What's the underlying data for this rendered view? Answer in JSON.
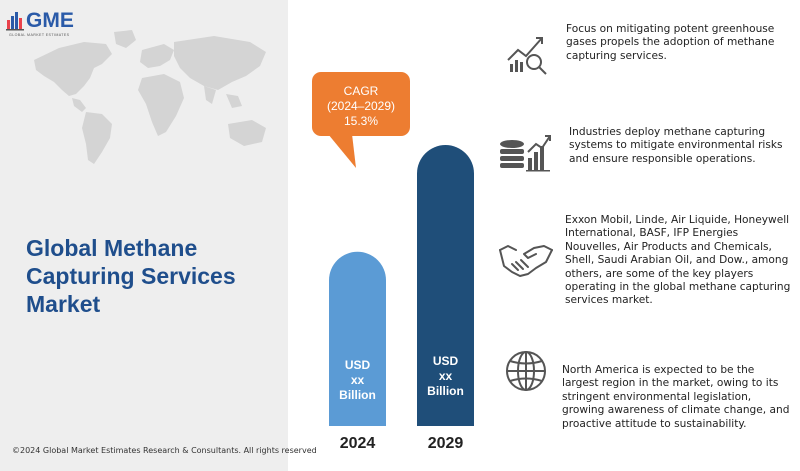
{
  "brand": {
    "logo_text": "GME",
    "logo_subtitle": "GLOBAL MARKET ESTIMATES"
  },
  "title": {
    "line1": "Global Methane",
    "line2": "Capturing Services",
    "line3": "Market"
  },
  "copyright": "©2024 Global Market Estimates Research & Consultants. All rights reserved",
  "callout": {
    "label": "CAGR",
    "period": "(2024–2029)",
    "value": "15.3%"
  },
  "chart_data": {
    "type": "bar",
    "categories": [
      "2024",
      "2029"
    ],
    "value_labels": [
      [
        "USD",
        "xx",
        "Billion"
      ],
      [
        "USD",
        "xx",
        "Billion"
      ]
    ],
    "relative_heights": [
      0.62,
      1.0
    ],
    "colors": [
      "#5b9bd5",
      "#1f4e79"
    ],
    "annotation": "CAGR (2024–2029) 15.3%"
  },
  "insights": [
    {
      "icon": "growth-chart-magnifier-icon",
      "text": "Focus on mitigating potent greenhouse gases propels the adoption of methane capturing services."
    },
    {
      "icon": "database-bar-chart-icon",
      "text": "Industries deploy methane capturing systems to mitigate environmental risks and ensure responsible operations."
    },
    {
      "icon": "handshake-icon",
      "text": "Exxon Mobil, Linde, Air Liquide, Honeywell International, BASF, IFP Energies Nouvelles, Air Products and Chemicals, Shell, Saudi Arabian Oil, and Dow., among others, are some of the key players operating in the global methane capturing services market."
    },
    {
      "icon": "globe-icon",
      "text": "North America is expected to be the largest region in the market, owing to its stringent environmental legislation, growing awareness of climate change, and proactive attitude to sustainability."
    }
  ],
  "colors": {
    "title": "#1f4e8c",
    "callout": "#ed7d31",
    "bar_light": "#5b9bd5",
    "bar_dark": "#1f4e79",
    "left_background": "#eeeeee"
  }
}
